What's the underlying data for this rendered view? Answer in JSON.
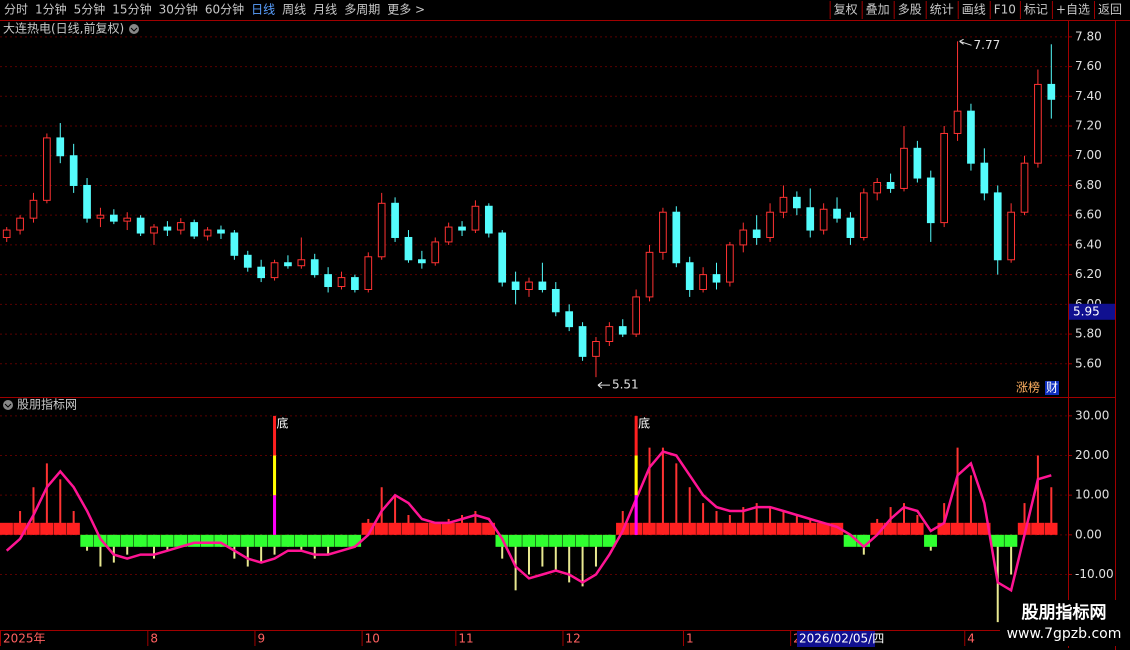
{
  "toolbar": {
    "left": [
      "分时",
      "1分钟",
      "5分钟",
      "15分钟",
      "30分钟",
      "60分钟",
      "日线",
      "周线",
      "月线",
      "多周期",
      "更多 >"
    ],
    "active_index": 6,
    "right": [
      "复权",
      "叠加",
      "多股",
      "统计",
      "画线",
      "F10",
      "标记",
      "+自选",
      "返回"
    ]
  },
  "chart_data": [
    {
      "type": "candlestick",
      "title": "大连热电(日线,前复权)",
      "categories": [
        "2025年",
        null,
        null,
        null,
        null,
        null,
        null,
        null,
        null,
        null,
        null,
        "8",
        null,
        null,
        null,
        null,
        null,
        null,
        null,
        "9",
        null,
        null,
        null,
        null,
        null,
        null,
        null,
        "10",
        null,
        null,
        null,
        null,
        null,
        null,
        "11",
        null,
        null,
        null,
        null,
        null,
        null,
        null,
        "12",
        null,
        null,
        null,
        null,
        null,
        null,
        null,
        null,
        "1",
        null,
        null,
        null,
        null,
        null,
        null,
        null,
        "2",
        null,
        null,
        null,
        null,
        null,
        null,
        null,
        null,
        null,
        null,
        null,
        null,
        "4",
        null,
        null,
        null,
        null,
        null,
        null
      ],
      "candles": [
        [
          6.45,
          6.52,
          6.42,
          6.5
        ],
        [
          6.5,
          6.6,
          6.47,
          6.58
        ],
        [
          6.58,
          6.75,
          6.55,
          6.7
        ],
        [
          6.7,
          7.15,
          6.68,
          7.12
        ],
        [
          7.12,
          7.22,
          6.95,
          7.0
        ],
        [
          7.0,
          7.08,
          6.75,
          6.8
        ],
        [
          6.8,
          6.85,
          6.55,
          6.58
        ],
        [
          6.58,
          6.65,
          6.52,
          6.6
        ],
        [
          6.6,
          6.64,
          6.54,
          6.56
        ],
        [
          6.56,
          6.62,
          6.5,
          6.58
        ],
        [
          6.58,
          6.6,
          6.46,
          6.48
        ],
        [
          6.48,
          6.54,
          6.4,
          6.52
        ],
        [
          6.52,
          6.56,
          6.46,
          6.5
        ],
        [
          6.5,
          6.58,
          6.47,
          6.55
        ],
        [
          6.55,
          6.57,
          6.44,
          6.46
        ],
        [
          6.46,
          6.52,
          6.43,
          6.5
        ],
        [
          6.5,
          6.53,
          6.44,
          6.48
        ],
        [
          6.48,
          6.5,
          6.3,
          6.33
        ],
        [
          6.33,
          6.36,
          6.22,
          6.25
        ],
        [
          6.25,
          6.3,
          6.15,
          6.18
        ],
        [
          6.18,
          6.3,
          6.16,
          6.28
        ],
        [
          6.28,
          6.33,
          6.24,
          6.26
        ],
        [
          6.26,
          6.45,
          6.24,
          6.3
        ],
        [
          6.3,
          6.34,
          6.18,
          6.2
        ],
        [
          6.2,
          6.25,
          6.08,
          6.12
        ],
        [
          6.12,
          6.22,
          6.1,
          6.18
        ],
        [
          6.18,
          6.2,
          6.08,
          6.1
        ],
        [
          6.1,
          6.35,
          6.08,
          6.32
        ],
        [
          6.32,
          6.75,
          6.3,
          6.68
        ],
        [
          6.68,
          6.72,
          6.42,
          6.45
        ],
        [
          6.45,
          6.5,
          6.28,
          6.3
        ],
        [
          6.3,
          6.36,
          6.24,
          6.28
        ],
        [
          6.28,
          6.45,
          6.26,
          6.42
        ],
        [
          6.42,
          6.55,
          6.4,
          6.52
        ],
        [
          6.52,
          6.56,
          6.46,
          6.5
        ],
        [
          6.5,
          6.7,
          6.48,
          6.66
        ],
        [
          6.66,
          6.68,
          6.45,
          6.48
        ],
        [
          6.48,
          6.5,
          6.12,
          6.15
        ],
        [
          6.15,
          6.22,
          6.0,
          6.1
        ],
        [
          6.1,
          6.18,
          6.05,
          6.15
        ],
        [
          6.15,
          6.28,
          6.08,
          6.1
        ],
        [
          6.1,
          6.15,
          5.92,
          5.95
        ],
        [
          5.95,
          6.0,
          5.82,
          5.85
        ],
        [
          5.85,
          5.88,
          5.62,
          5.65
        ],
        [
          5.65,
          5.78,
          5.51,
          5.75
        ],
        [
          5.75,
          5.88,
          5.72,
          5.85
        ],
        [
          5.85,
          5.9,
          5.78,
          5.8
        ],
        [
          5.8,
          6.1,
          5.78,
          6.05
        ],
        [
          6.05,
          6.4,
          6.02,
          6.35
        ],
        [
          6.35,
          6.65,
          6.3,
          6.62
        ],
        [
          6.62,
          6.66,
          6.25,
          6.28
        ],
        [
          6.28,
          6.32,
          6.05,
          6.1
        ],
        [
          6.1,
          6.25,
          6.08,
          6.2
        ],
        [
          6.2,
          6.28,
          6.1,
          6.15
        ],
        [
          6.15,
          6.42,
          6.12,
          6.4
        ],
        [
          6.4,
          6.55,
          6.35,
          6.5
        ],
        [
          6.5,
          6.6,
          6.4,
          6.45
        ],
        [
          6.45,
          6.68,
          6.42,
          6.62
        ],
        [
          6.62,
          6.8,
          6.58,
          6.72
        ],
        [
          6.72,
          6.76,
          6.6,
          6.65
        ],
        [
          6.65,
          6.78,
          6.45,
          6.5
        ],
        [
          6.5,
          6.68,
          6.47,
          6.64
        ],
        [
          6.64,
          6.72,
          6.55,
          6.58
        ],
        [
          6.58,
          6.62,
          6.4,
          6.45
        ],
        [
          6.45,
          6.78,
          6.43,
          6.75
        ],
        [
          6.75,
          6.85,
          6.7,
          6.82
        ],
        [
          6.82,
          6.88,
          6.75,
          6.78
        ],
        [
          6.78,
          7.2,
          6.76,
          7.05
        ],
        [
          7.05,
          7.1,
          6.82,
          6.85
        ],
        [
          6.85,
          6.9,
          6.42,
          6.55
        ],
        [
          6.55,
          7.2,
          6.52,
          7.15
        ],
        [
          7.15,
          7.77,
          7.1,
          7.3
        ],
        [
          7.3,
          7.35,
          6.9,
          6.95
        ],
        [
          6.95,
          7.05,
          6.7,
          6.75
        ],
        [
          6.75,
          6.8,
          6.2,
          6.3
        ],
        [
          6.3,
          6.68,
          6.28,
          6.62
        ],
        [
          6.62,
          7.0,
          6.6,
          6.95
        ],
        [
          6.95,
          7.58,
          6.92,
          7.48
        ],
        [
          7.48,
          7.75,
          7.25,
          7.38
        ]
      ],
      "up_color": "#ff3232",
      "down_color": "#54fcfc",
      "ylim": [
        5.39,
        7.9
      ],
      "yticks": [
        {
          "value": 7.8,
          "label": "7.80"
        },
        {
          "value": 7.6,
          "label": "7.60"
        },
        {
          "value": 7.4,
          "label": "7.40"
        },
        {
          "value": 7.2,
          "label": "7.20"
        },
        {
          "value": 7.0,
          "label": "7.00"
        },
        {
          "value": 6.8,
          "label": "6.80"
        },
        {
          "value": 6.6,
          "label": "6.60"
        },
        {
          "value": 6.4,
          "label": "6.40"
        },
        {
          "value": 6.2,
          "label": "6.20"
        },
        {
          "value": 6.0,
          "label": "6.00"
        },
        {
          "value": 5.8,
          "label": "5.80"
        },
        {
          "value": 5.6,
          "label": "5.60"
        }
      ],
      "grid": true,
      "annotations": {
        "high": 7.77,
        "low": 5.51
      },
      "crosshair": {
        "price": 5.95,
        "date": "2026/02/05/四"
      },
      "badges": [
        "涨榜",
        "财"
      ]
    },
    {
      "type": "indicator",
      "title": "股朋指标网",
      "histogram": {
        "up_color": "#ff3232",
        "down_color": "#e8e890",
        "values": [
          2,
          6,
          12,
          18,
          14,
          6,
          -4,
          -8,
          -7,
          -5,
          -3,
          -6,
          -4,
          -2,
          -1,
          -2,
          -3,
          -6,
          -8,
          -7,
          -5,
          -3,
          -4,
          -6,
          -5,
          -3,
          -2,
          4,
          12,
          10,
          5,
          2,
          3,
          4,
          5,
          6,
          2,
          -6,
          -14,
          -10,
          -8,
          -9,
          -12,
          -13,
          -8,
          -2,
          6,
          16,
          22,
          22,
          18,
          12,
          8,
          6,
          5,
          7,
          8,
          7,
          6,
          5,
          4,
          3,
          2,
          -2,
          -5,
          4,
          7,
          8,
          5,
          -4,
          8,
          22,
          15,
          2,
          -22,
          -10,
          8,
          20,
          12
        ]
      },
      "blocks": {
        "up_color": "#ff2020",
        "down_color": "#30ff30"
      },
      "line": {
        "color": "#ff1493",
        "values": [
          -4,
          -1,
          5,
          12,
          16,
          12,
          6,
          -1,
          -5,
          -6,
          -5,
          -5,
          -4,
          -3,
          -2,
          -2,
          -2,
          -4,
          -6,
          -7,
          -6,
          -4,
          -4,
          -5,
          -5,
          -4,
          -3,
          0,
          6,
          10,
          8,
          4,
          3,
          3,
          4,
          5,
          4,
          -1,
          -8,
          -11,
          -10,
          -9,
          -10,
          -12,
          -10,
          -5,
          1,
          9,
          17,
          21,
          20,
          15,
          10,
          7,
          6,
          6,
          7,
          7,
          6,
          5,
          4,
          3,
          2,
          0,
          -3,
          0,
          4,
          7,
          6,
          1,
          3,
          15,
          18,
          8,
          -12,
          -14,
          0,
          14,
          15
        ]
      },
      "signal": {
        "label": "底",
        "values": [
          null,
          null,
          null,
          null,
          null,
          null,
          null,
          null,
          null,
          null,
          null,
          null,
          null,
          null,
          null,
          null,
          null,
          null,
          null,
          null,
          30,
          null,
          null,
          null,
          null,
          null,
          null,
          null,
          null,
          null,
          null,
          null,
          null,
          null,
          null,
          null,
          null,
          null,
          null,
          null,
          null,
          null,
          null,
          null,
          null,
          null,
          null,
          30,
          null,
          null,
          null,
          null,
          null,
          null,
          null,
          null,
          null,
          null,
          null,
          null,
          null,
          null,
          null,
          null,
          null,
          null,
          null,
          null,
          null,
          null,
          null,
          null,
          null,
          null,
          null,
          null,
          null,
          null,
          null
        ]
      },
      "ylim": [
        -24,
        34.5
      ],
      "yticks": [
        {
          "value": 30,
          "label": "30.00"
        },
        {
          "value": 20,
          "label": "20.00"
        },
        {
          "value": 10,
          "label": "10.00"
        },
        {
          "value": 0,
          "label": "0.00"
        },
        {
          "value": -10,
          "label": "-10.00"
        }
      ],
      "grid": true
    }
  ],
  "watermark": {
    "title": "股朋指标网",
    "url": "www.7gpzb.com"
  }
}
